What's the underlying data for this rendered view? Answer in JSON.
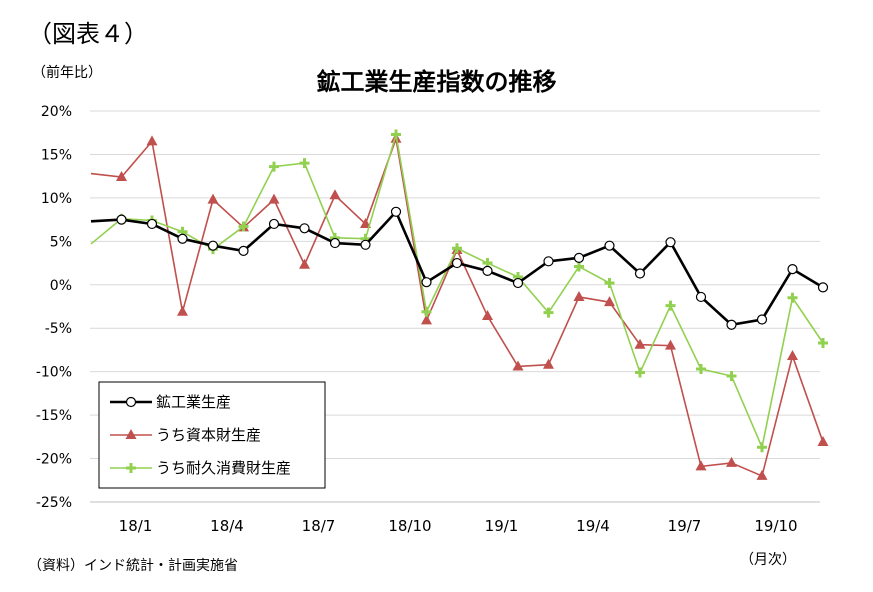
{
  "figure_label": "（図表４）",
  "unit_label": "（前年比）",
  "source_note": "（資料）インド統計・計画実施省",
  "x_unit": "（月次）",
  "colors": {
    "mining": "#000000",
    "capital": "#c0504d",
    "durable": "#92d050",
    "grid": "#d9d9d9"
  },
  "chart_data": {
    "type": "line",
    "title": "鉱工業生産指数の推移",
    "ylim": [
      -25,
      20
    ],
    "y_ticks": [
      "20%",
      "15%",
      "10%",
      "5%",
      "0%",
      "-5%",
      "-10%",
      "-15%",
      "-20%",
      "-25%"
    ],
    "x_tick_labels": [
      "18/1",
      "18/4",
      "18/7",
      "18/10",
      "19/1",
      "19/4",
      "19/7",
      "19/10"
    ],
    "grid": "horizontal",
    "legend": "bottom-left",
    "x": [
      "17/12",
      "18/1",
      "18/2",
      "18/3",
      "18/4",
      "18/5",
      "18/6",
      "18/7",
      "18/8",
      "18/9",
      "18/10",
      "18/11",
      "18/12",
      "19/1",
      "19/2",
      "19/3",
      "19/4",
      "19/5",
      "19/6",
      "19/7",
      "19/8",
      "19/9",
      "19/10",
      "19/11",
      "19/12"
    ],
    "series": [
      {
        "name": "鉱工業生産",
        "marker": "circle",
        "color": "#000000",
        "values": [
          7.3,
          7.5,
          7.0,
          5.3,
          4.5,
          3.9,
          7.0,
          6.5,
          4.8,
          4.6,
          8.4,
          0.3,
          2.5,
          1.6,
          0.2,
          2.7,
          3.1,
          4.5,
          1.3,
          4.9,
          -1.4,
          -4.6,
          -4.0,
          1.8,
          -0.3
        ]
      },
      {
        "name": "うち資本財生産",
        "marker": "triangle",
        "color": "#c0504d",
        "values": [
          12.8,
          12.4,
          16.5,
          -3.1,
          9.8,
          6.6,
          9.8,
          2.3,
          10.3,
          7.0,
          16.8,
          -4.1,
          4.0,
          -3.6,
          -9.4,
          -9.2,
          -1.4,
          -2.0,
          -6.9,
          -7.0,
          -20.9,
          -20.5,
          -22.0,
          -8.2,
          -18.1
        ]
      },
      {
        "name": "うち耐久消費財生産",
        "marker": "plus",
        "color": "#92d050",
        "values": [
          4.7,
          7.6,
          7.4,
          6.1,
          4.1,
          6.7,
          13.6,
          14.0,
          5.4,
          5.3,
          17.3,
          -3.1,
          4.2,
          2.5,
          0.9,
          -3.2,
          2.1,
          0.2,
          -10.1,
          -2.4,
          -9.7,
          -10.5,
          -18.7,
          -1.5,
          -6.7
        ]
      }
    ]
  }
}
